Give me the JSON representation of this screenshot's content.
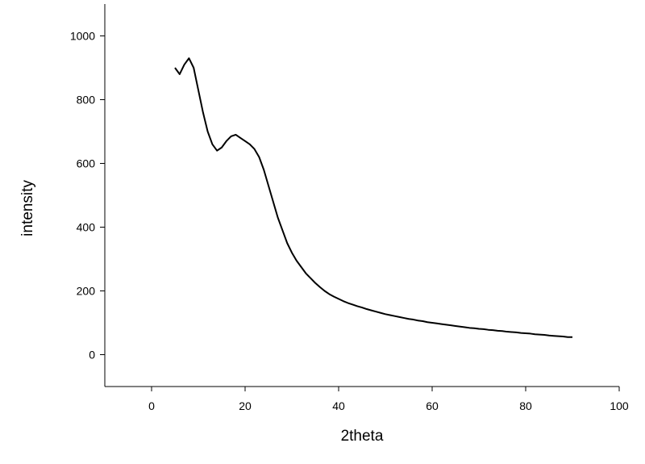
{
  "chart_data": {
    "type": "line",
    "xlabel": "2theta",
    "ylabel": "intensity",
    "x": [
      5,
      6,
      7,
      8,
      9,
      10,
      11,
      12,
      13,
      14,
      15,
      16,
      17,
      18,
      19,
      20,
      21,
      22,
      23,
      24,
      25,
      26,
      27,
      28,
      29,
      30,
      31,
      32,
      33,
      34,
      35,
      36,
      37,
      38,
      39,
      40,
      41,
      42,
      43,
      44,
      45,
      46,
      47,
      48,
      49,
      50,
      51,
      52,
      53,
      54,
      55,
      56,
      57,
      58,
      59,
      60,
      61,
      62,
      63,
      64,
      65,
      66,
      67,
      68,
      69,
      70,
      71,
      72,
      73,
      74,
      75,
      76,
      77,
      78,
      79,
      80,
      81,
      82,
      83,
      84,
      85,
      86,
      87,
      88,
      89,
      90
    ],
    "values": [
      900,
      880,
      910,
      930,
      900,
      830,
      760,
      700,
      660,
      640,
      650,
      670,
      685,
      690,
      680,
      670,
      660,
      645,
      620,
      580,
      530,
      480,
      430,
      390,
      350,
      320,
      295,
      275,
      255,
      240,
      225,
      212,
      200,
      190,
      182,
      175,
      168,
      162,
      157,
      152,
      148,
      143,
      139,
      135,
      131,
      127,
      124,
      121,
      118,
      115,
      112,
      110,
      107,
      105,
      102,
      100,
      98,
      96,
      94,
      92,
      90,
      88,
      86,
      84,
      83,
      81,
      80,
      78,
      77,
      75,
      74,
      72,
      71,
      70,
      68,
      67,
      66,
      64,
      63,
      62,
      60,
      59,
      58,
      57,
      55,
      55
    ],
    "color": "#000000",
    "xlim": [
      -10,
      100
    ],
    "xticks": [
      0,
      20,
      40,
      60,
      80,
      100
    ],
    "ylim": [
      -100,
      1100
    ],
    "yticks": [
      0,
      200,
      400,
      600,
      800,
      1000
    ]
  }
}
